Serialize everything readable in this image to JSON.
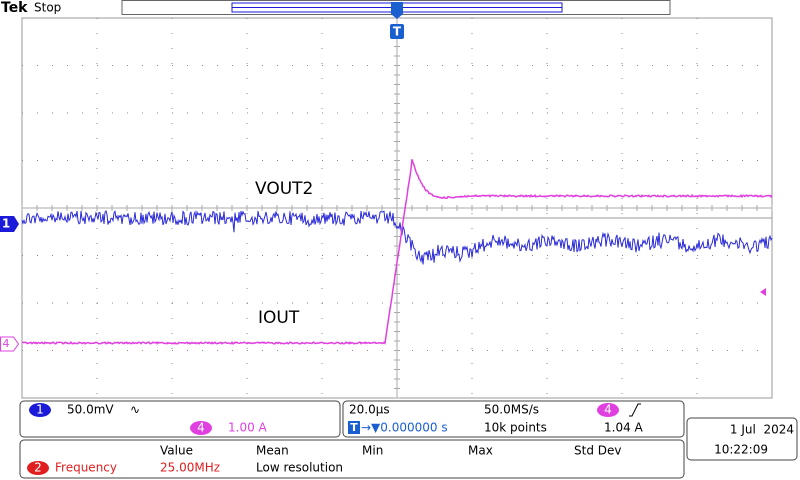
{
  "header": {
    "brand": "Tek",
    "status": "Stop"
  },
  "markers": {
    "trigger": "T",
    "channel1": "1",
    "channel4": "4"
  },
  "labels": {
    "trace1": "VOUT2",
    "trace2": "IOUT"
  },
  "channel_panel": {
    "ch1_number": "1",
    "ch1_scale": "50.0mV",
    "ch1_bandwidth": "∿",
    "ch4_number": "4",
    "ch4_scale": "1.00 A"
  },
  "timebase_panel": {
    "horizontal_scale": "20.0µs",
    "sample_rate": "50.0MS/s",
    "trigger_source": "4",
    "trigger_marker": "T",
    "position": "→▼0.000000 s",
    "record_length": "10k points",
    "trigger_level": "1.04 A"
  },
  "datetime": {
    "date": "1 Jul  2024",
    "time": "10:22:09"
  },
  "measurements": {
    "headers": [
      "Value",
      "Mean",
      "Min",
      "Max",
      "Std Dev"
    ],
    "rows": [
      {
        "number": "2",
        "name": "Frequency",
        "value": "25.00MHz",
        "mean": "Low resolution"
      }
    ]
  }
}
